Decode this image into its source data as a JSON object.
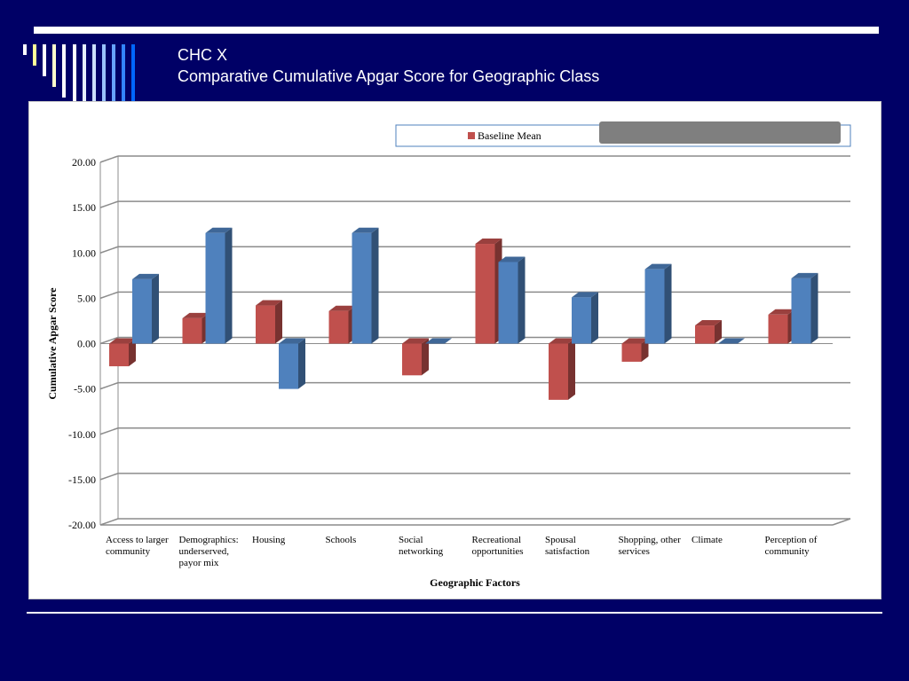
{
  "slide": {
    "title_line1": "CHC X",
    "title_line2": "Comparative Cumulative Apgar Score for Geographic Class"
  },
  "colors": {
    "background": "#000066",
    "red_series": "#c0504d",
    "blue_series": "#4f81bd"
  },
  "chart_data": {
    "type": "bar",
    "style": "3d-clustered-column",
    "xlabel": "Geographic Factors",
    "ylabel": "Cumulative Apgar Score",
    "ylim": [
      -20,
      20
    ],
    "yticks": [
      "20.00",
      "15.00",
      "10.00",
      "5.00",
      "0.00",
      "-5.00",
      "-10.00",
      "-15.00",
      "-20.00"
    ],
    "grid": true,
    "legend": {
      "placement": "top-right",
      "entries": [
        "Baseline Mean"
      ]
    },
    "categories": [
      [
        "Access to larger",
        "community"
      ],
      [
        "Demographics:",
        "underserved,",
        "payor mix"
      ],
      [
        "Housing"
      ],
      [
        "Schools"
      ],
      [
        "Social",
        "networking"
      ],
      [
        "Recreational",
        "opportunities"
      ],
      [
        "Spousal",
        "satisfaction"
      ],
      [
        "Shopping, other",
        "services"
      ],
      [
        "Climate"
      ],
      [
        "Perception of",
        "community"
      ]
    ],
    "series": [
      {
        "name": "Baseline Mean",
        "color": "#c0504d",
        "values": [
          -2.5,
          2.8,
          4.2,
          3.6,
          -3.5,
          11.0,
          -6.2,
          -2.0,
          2.0,
          3.2
        ]
      },
      {
        "color": "#4f81bd",
        "values": [
          7.1,
          12.2,
          -5.0,
          12.2,
          0.0,
          9.0,
          5.1,
          8.2,
          0.0,
          7.2
        ]
      }
    ]
  }
}
